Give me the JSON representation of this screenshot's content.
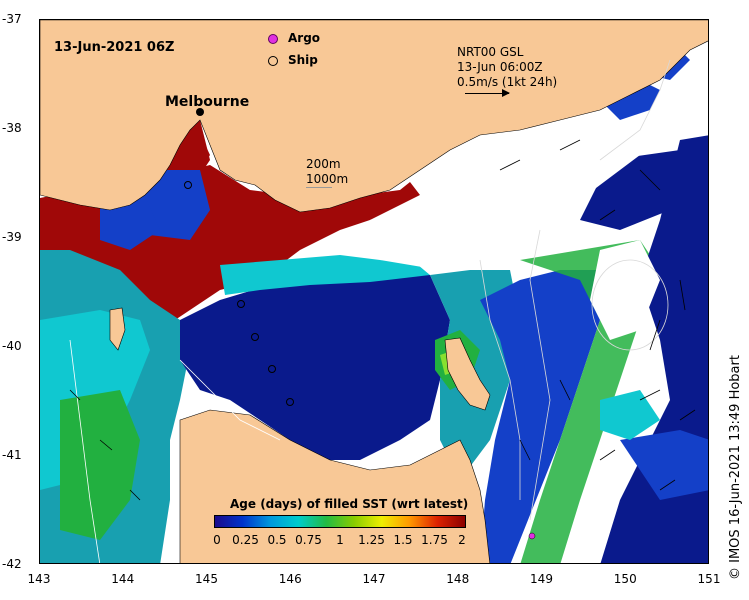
{
  "map": {
    "date_label": "13-Jun-2021 06Z",
    "city_label": "Melbourne",
    "legend": {
      "argo": "Argo",
      "ship": "Ship"
    },
    "depth_legend": {
      "line1": "200m",
      "line2": "1000m"
    },
    "current_legend": {
      "line1": "NRT00 GSL",
      "line2": "13-Jun 06:00Z",
      "line3": "0.5m/s (1kt 24h)"
    },
    "side_caption": "© IMOS 16-Jun-2021 13:49 Hobart",
    "x_ticks": [
      "143",
      "144",
      "145",
      "146",
      "147",
      "148",
      "149",
      "150",
      "151"
    ],
    "y_ticks": [
      "-37",
      "-38",
      "-39",
      "-40",
      "-41",
      "-42"
    ],
    "colorbar": {
      "title": "Age (days) of filled SST (wrt latest)",
      "labels": [
        "0",
        "0.25",
        "0.5",
        "0.75",
        "1",
        "1.25",
        "1.5",
        "1.75",
        "2"
      ],
      "colors": [
        "#1a0a8c",
        "#0033cc",
        "#0099dd",
        "#00cccc",
        "#22bb44",
        "#88cc00",
        "#eeee00",
        "#ff9900",
        "#dd2200",
        "#8b0000"
      ]
    },
    "colors": {
      "land": "#f8c896",
      "deep_blue": "#0a1a8c",
      "blue": "#1440c8",
      "cyan": "#10c8d0",
      "teal": "#18a0b0",
      "green": "#22b040",
      "lime": "#88e030",
      "dark_red": "#a00808",
      "argo": "#e030e0"
    }
  }
}
